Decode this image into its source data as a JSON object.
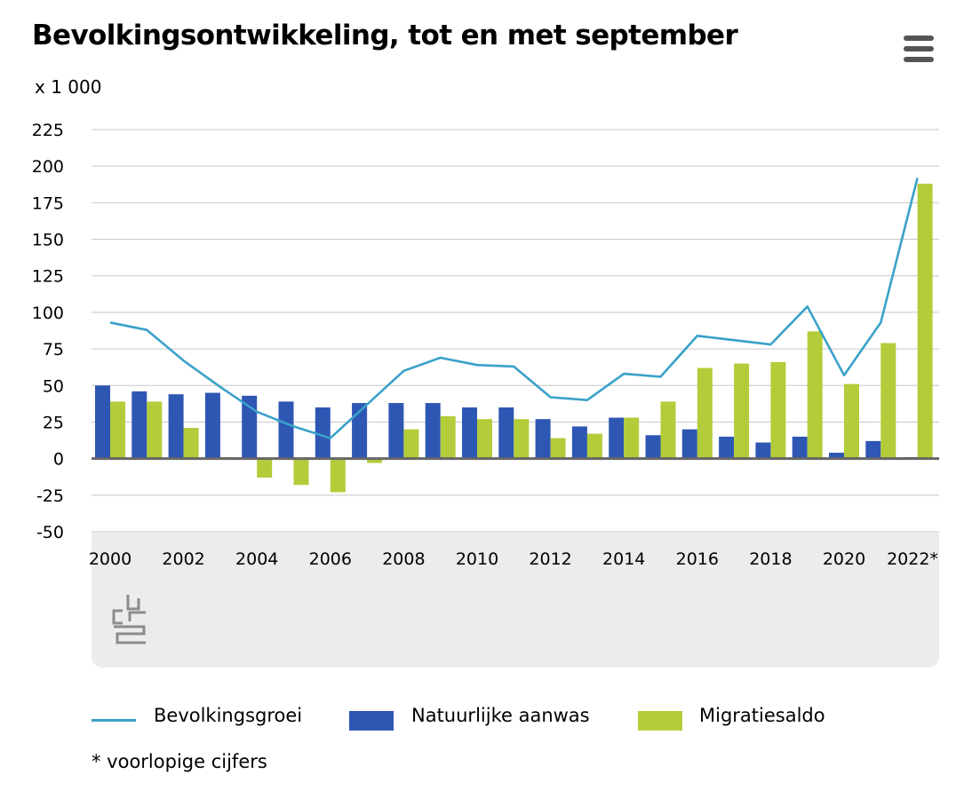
{
  "header": {
    "title": "Bevolkingsontwikkeling, tot en met september",
    "unit_label": "x 1 000"
  },
  "legend": {
    "line_label": "Bevolkingsgroei",
    "bar1_label": "Natuurlijke aanwas",
    "bar2_label": "Migratiesaldo"
  },
  "footnote": "* voorlopige cijfers",
  "colors": {
    "line": "#3aa1c9",
    "bar1": "#2e56b3",
    "bar2": "#b3cc3a",
    "grid": "#c8c8c8",
    "zero_line": "#666666"
  },
  "chart_data": {
    "type": "bar",
    "categories": [
      "2000",
      "2001",
      "2002",
      "2003",
      "2004",
      "2005",
      "2006",
      "2007",
      "2008",
      "2009",
      "2010",
      "2011",
      "2012",
      "2013",
      "2014",
      "2015",
      "2016",
      "2017",
      "2018",
      "2019",
      "2020",
      "2021",
      "2022*"
    ],
    "x_tick_labels": [
      "2000",
      "2002",
      "2004",
      "2006",
      "2008",
      "2010",
      "2012",
      "2014",
      "2016",
      "2018",
      "2020",
      "2022*"
    ],
    "y_ticks": [
      225,
      200,
      175,
      150,
      125,
      100,
      75,
      50,
      25,
      0,
      -25,
      -50
    ],
    "ylim": [
      -50,
      225
    ],
    "grid": true,
    "series": [
      {
        "name": "Natuurlijke aanwas",
        "type": "bar",
        "values": [
          50,
          46,
          44,
          45,
          43,
          39,
          35,
          38,
          38,
          38,
          35,
          35,
          27,
          22,
          28,
          16,
          20,
          15,
          11,
          15,
          4,
          12,
          1
        ]
      },
      {
        "name": "Migratiesaldo",
        "type": "bar",
        "values": [
          39,
          39,
          21,
          1,
          -13,
          -18,
          -23,
          -3,
          20,
          29,
          27,
          27,
          14,
          17,
          28,
          39,
          62,
          65,
          66,
          87,
          51,
          79,
          188
        ]
      },
      {
        "name": "Bevolkingsgroei",
        "type": "line",
        "values": [
          93,
          88,
          67,
          49,
          32,
          22,
          14,
          37,
          60,
          69,
          64,
          63,
          42,
          40,
          58,
          56,
          84,
          81,
          78,
          104,
          57,
          93,
          192
        ]
      }
    ]
  }
}
